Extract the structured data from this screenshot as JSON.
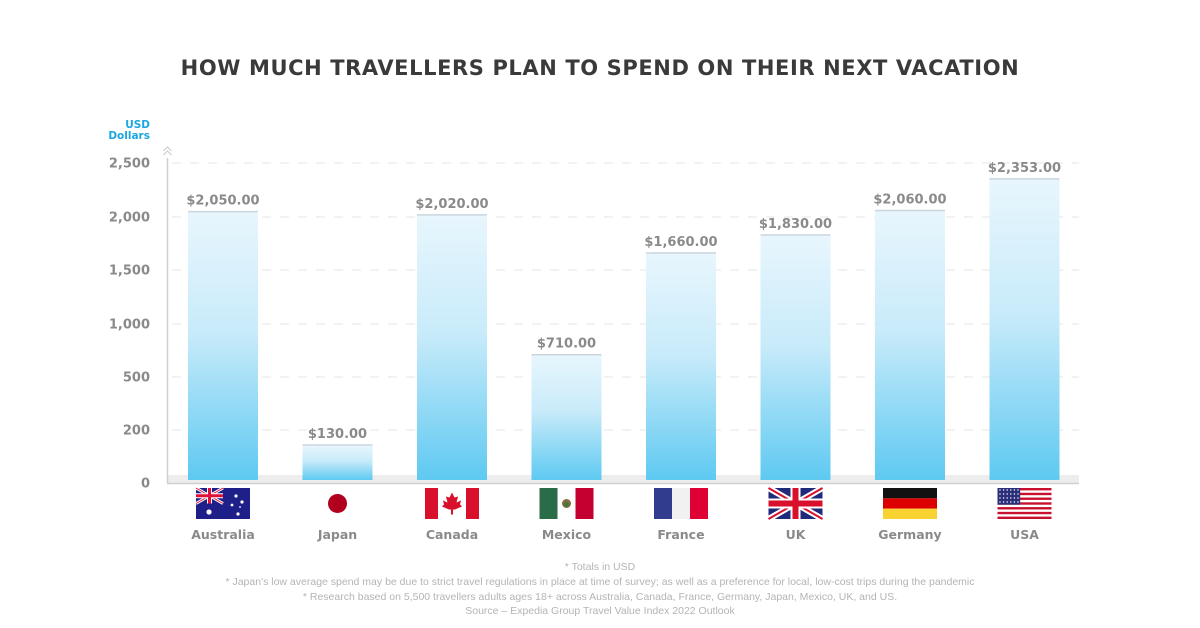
{
  "chart_data": {
    "type": "bar",
    "title": "HOW MUCH TRAVELLERS PLAN TO SPEND ON THEIR NEXT VACATION",
    "ylabel_line1": "USD",
    "ylabel_line2": "Dollars",
    "xlabel": "",
    "yticks": [
      0,
      200,
      500,
      1000,
      1500,
      2000,
      2500
    ],
    "ytick_labels": [
      "0",
      "200",
      "500",
      "1,000",
      "1,500",
      "2,000",
      "2,500"
    ],
    "ylim": [
      0,
      2500
    ],
    "grid": true,
    "categories": [
      "Australia",
      "Japan",
      "Canada",
      "Mexico",
      "France",
      "UK",
      "Germany",
      "USA"
    ],
    "values": [
      2050,
      130,
      2020,
      710,
      1660,
      1830,
      2060,
      2353
    ],
    "value_labels": [
      "$2,050.00",
      "$130.00",
      "$2,020.00",
      "$710.00",
      "$1,660.00",
      "$1,830.00",
      "$2,060.00",
      "$2,353.00"
    ],
    "flag_icons": [
      "australia-flag-icon",
      "japan-flag-icon",
      "canada-flag-icon",
      "mexico-flag-icon",
      "france-flag-icon",
      "uk-flag-icon",
      "germany-flag-icon",
      "usa-flag-icon"
    ],
    "colors": {
      "bar_top": "#e6f5fc",
      "bar_bottom": "#5bc8f0",
      "ylabel": "#1aa6e0",
      "text": "#8a8a8a"
    }
  },
  "footnotes": [
    "* Totals in USD",
    "* Japan's low average spend may be due to strict travel regulations in place at time of survey; as well as a preference for local, low-cost trips during the pandemic",
    "* Research based on 5,500 travellers adults ages 18+ across Australia, Canada, France, Germany, Japan, Mexico, UK, and US.",
    "Source – Expedia Group Travel Value Index 2022 Outlook"
  ]
}
